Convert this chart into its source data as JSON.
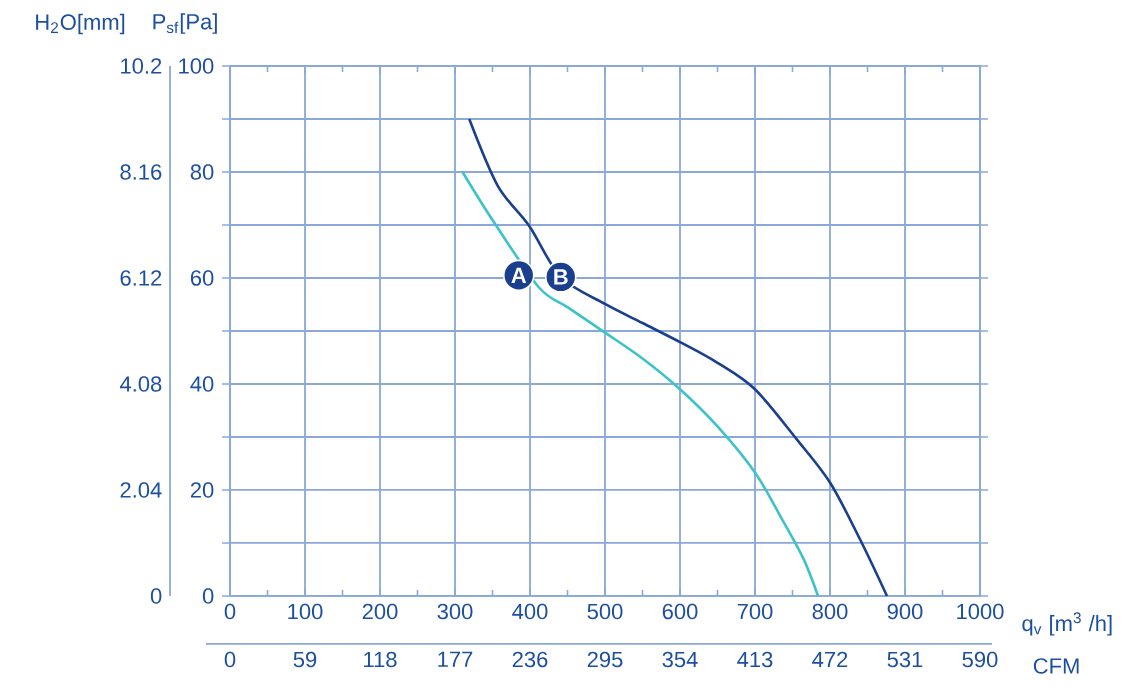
{
  "chart_data": {
    "type": "line",
    "xlabel": "q$_{v}$ [m$^{3}$ /h]",
    "ylabel": "P$_{sf}$[Pa]",
    "y2label": "H$_{2}$O[mm]",
    "x2label": "CFM",
    "xlim": [
      0,
      1000
    ],
    "ylim": [
      0,
      100
    ],
    "y2lim": [
      0,
      10.2
    ],
    "x2lim": [
      0,
      590
    ],
    "xticks": [
      0,
      {
        "value": 50,
        "label": null
      },
      100,
      {
        "value": 150,
        "label": null
      },
      200,
      {
        "value": 250,
        "label": null
      },
      300,
      {
        "value": 350,
        "label": null
      },
      400,
      {
        "value": 450,
        "label": null
      },
      500,
      {
        "value": 550,
        "label": null
      },
      600,
      {
        "value": 650,
        "label": null
      },
      700,
      {
        "value": 750,
        "label": null
      },
      800,
      {
        "value": 850,
        "label": null
      },
      900,
      {
        "value": 950,
        "label": null
      },
      1000
    ],
    "yticks": [
      0,
      {
        "value": 10,
        "label": null
      },
      20,
      {
        "value": 30,
        "label": null
      },
      40,
      {
        "value": 50,
        "label": null
      },
      60,
      {
        "value": 70,
        "label": null
      },
      80,
      {
        "value": 90,
        "label": null
      },
      100
    ],
    "y2ticks": [
      0,
      2.04,
      4.08,
      6.12,
      8.16,
      10.2
    ],
    "x2ticks": [
      0,
      59,
      118,
      177,
      236,
      295,
      354,
      413,
      472,
      531,
      590
    ],
    "grid": true,
    "series": [
      {
        "color": "#3cc3c8",
        "x": [
          310,
          352,
          412,
          450,
          500,
          550,
          600,
          650,
          700,
          736,
          765,
          784
        ],
        "values": [
          80,
          70.5,
          58.2,
          54.5,
          49.7,
          44.8,
          39,
          32,
          23.3,
          14.5,
          6.9,
          0
        ]
      },
      {
        "color": "#1b3f8f",
        "x": [
          319,
          357,
          399,
          441,
          500,
          550,
          600,
          650,
          700,
          756,
          800,
          840,
          876
        ],
        "values": [
          90,
          77.4,
          69.8,
          60.2,
          55.1,
          51.5,
          47.9,
          44,
          39,
          29.5,
          21.4,
          10.7,
          0
        ]
      }
    ],
    "annotations": [
      {
        "text": "A",
        "x": 385,
        "y": 60.5
      },
      {
        "text": "B",
        "x": 441,
        "y": 60.2
      }
    ]
  }
}
